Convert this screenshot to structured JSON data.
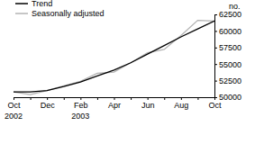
{
  "chart_data": {
    "type": "line",
    "y_label": "no.",
    "categories": [
      "Oct",
      null,
      "Dec",
      null,
      "Feb",
      null,
      "Apr",
      null,
      "Jun",
      null,
      "Aug",
      null,
      "Oct"
    ],
    "years": [
      "2002",
      null,
      null,
      null,
      "2003",
      null,
      null,
      null,
      null,
      null,
      null,
      null,
      null
    ],
    "series": [
      {
        "name": "Trend",
        "color": "#000000",
        "values": [
          50800,
          50800,
          51000,
          51600,
          52300,
          53200,
          54100,
          55200,
          56500,
          57800,
          59100,
          60300,
          61500
        ]
      },
      {
        "name": "Seasonally adjusted",
        "color": "#b3b3b3",
        "values": [
          50800,
          50400,
          51000,
          51700,
          52400,
          53600,
          53800,
          55200,
          56700,
          57200,
          59300,
          61600,
          61500
        ]
      }
    ],
    "ylim": [
      50000,
      62500
    ],
    "yticks": [
      50000,
      52500,
      55000,
      57500,
      60000,
      62500
    ],
    "legend": "top-left"
  }
}
